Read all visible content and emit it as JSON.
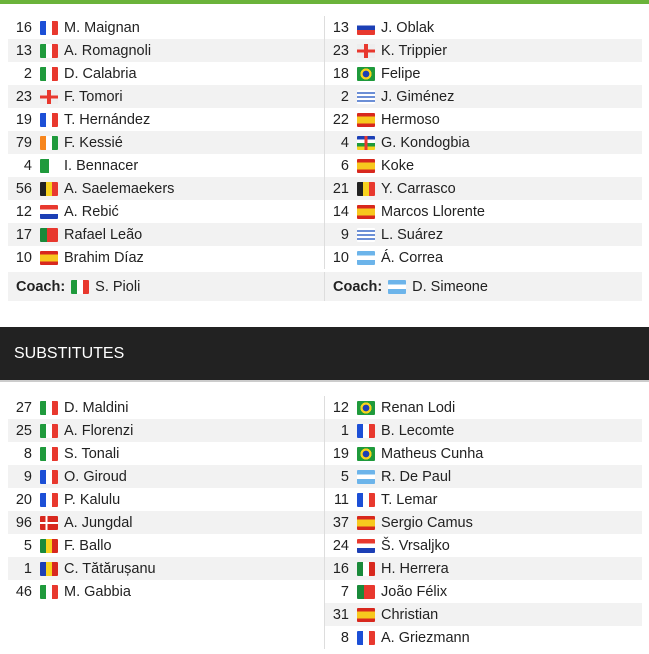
{
  "lineup": {
    "home": [
      {
        "num": "16",
        "flag": "fr",
        "name": "M. Maignan"
      },
      {
        "num": "13",
        "flag": "it",
        "name": "A. Romagnoli"
      },
      {
        "num": "2",
        "flag": "it",
        "name": "D. Calabria"
      },
      {
        "num": "23",
        "flag": "en",
        "name": "F. Tomori"
      },
      {
        "num": "19",
        "flag": "fr",
        "name": "T. Hernández"
      },
      {
        "num": "79",
        "flag": "ci",
        "name": "F. Kessié"
      },
      {
        "num": "4",
        "flag": "dz",
        "name": "I. Bennacer"
      },
      {
        "num": "56",
        "flag": "be",
        "name": "A. Saelemaekers"
      },
      {
        "num": "12",
        "flag": "hr",
        "name": "A. Rebić"
      },
      {
        "num": "17",
        "flag": "pt",
        "name": "Rafael Leão"
      },
      {
        "num": "10",
        "flag": "es",
        "name": "Brahim Díaz"
      }
    ],
    "away": [
      {
        "num": "13",
        "flag": "si",
        "name": "J. Oblak"
      },
      {
        "num": "23",
        "flag": "en",
        "name": "K. Trippier"
      },
      {
        "num": "18",
        "flag": "br",
        "name": "Felipe"
      },
      {
        "num": "2",
        "flag": "uy",
        "name": "J. Giménez"
      },
      {
        "num": "22",
        "flag": "es",
        "name": "Hermoso"
      },
      {
        "num": "4",
        "flag": "cf",
        "name": "G. Kondogbia"
      },
      {
        "num": "6",
        "flag": "es",
        "name": "Koke"
      },
      {
        "num": "21",
        "flag": "be",
        "name": "Y. Carrasco"
      },
      {
        "num": "14",
        "flag": "es",
        "name": "Marcos Llorente"
      },
      {
        "num": "9",
        "flag": "uy",
        "name": "L. Suárez"
      },
      {
        "num": "10",
        "flag": "ar",
        "name": "Á. Correa"
      }
    ]
  },
  "coaches": {
    "label": "Coach:",
    "home": {
      "flag": "it",
      "name": "S. Pioli"
    },
    "away": {
      "flag": "ar",
      "name": "D. Simeone"
    }
  },
  "substitutes_title": "SUBSTITUTES",
  "subs": {
    "home": [
      {
        "num": "27",
        "flag": "it",
        "name": "D. Maldini"
      },
      {
        "num": "25",
        "flag": "it",
        "name": "A. Florenzi"
      },
      {
        "num": "8",
        "flag": "it",
        "name": "S. Tonali"
      },
      {
        "num": "9",
        "flag": "fr",
        "name": "O. Giroud"
      },
      {
        "num": "20",
        "flag": "fr",
        "name": "P. Kalulu"
      },
      {
        "num": "96",
        "flag": "dk",
        "name": "A. Jungdal"
      },
      {
        "num": "5",
        "flag": "sn",
        "name": "F. Ballo"
      },
      {
        "num": "1",
        "flag": "ro",
        "name": "C. Tătărușanu"
      },
      {
        "num": "46",
        "flag": "it",
        "name": "M. Gabbia"
      }
    ],
    "away": [
      {
        "num": "12",
        "flag": "br",
        "name": "Renan Lodi"
      },
      {
        "num": "1",
        "flag": "fr",
        "name": "B. Lecomte"
      },
      {
        "num": "19",
        "flag": "br",
        "name": "Matheus Cunha"
      },
      {
        "num": "5",
        "flag": "ar",
        "name": "R. De Paul"
      },
      {
        "num": "11",
        "flag": "fr",
        "name": "T. Lemar"
      },
      {
        "num": "37",
        "flag": "es",
        "name": "Sergio Camus"
      },
      {
        "num": "24",
        "flag": "hr",
        "name": "Š. Vrsaljko"
      },
      {
        "num": "16",
        "flag": "mx",
        "name": "H. Herrera"
      },
      {
        "num": "7",
        "flag": "pt",
        "name": "João Félix"
      },
      {
        "num": "31",
        "flag": "es",
        "name": "Christian"
      },
      {
        "num": "8",
        "flag": "fr",
        "name": "A. Griezmann"
      }
    ]
  }
}
